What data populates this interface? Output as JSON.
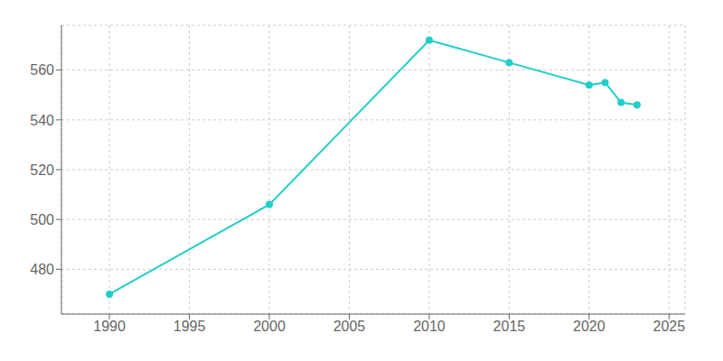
{
  "chart_data": {
    "type": "line",
    "x": [
      1990,
      2000,
      2010,
      2015,
      2020,
      2021,
      2022,
      2023
    ],
    "values": [
      470,
      506,
      572,
      563,
      554,
      555,
      547,
      546
    ],
    "color": "#22CEC8",
    "marker": "circle",
    "xlim": [
      1987,
      2026
    ],
    "xticks": [
      1990,
      1995,
      2000,
      2005,
      2010,
      2015,
      2020,
      2025
    ],
    "ylim": [
      462,
      578
    ],
    "yticks": [
      480,
      500,
      520,
      540,
      560
    ],
    "grid": true
  }
}
